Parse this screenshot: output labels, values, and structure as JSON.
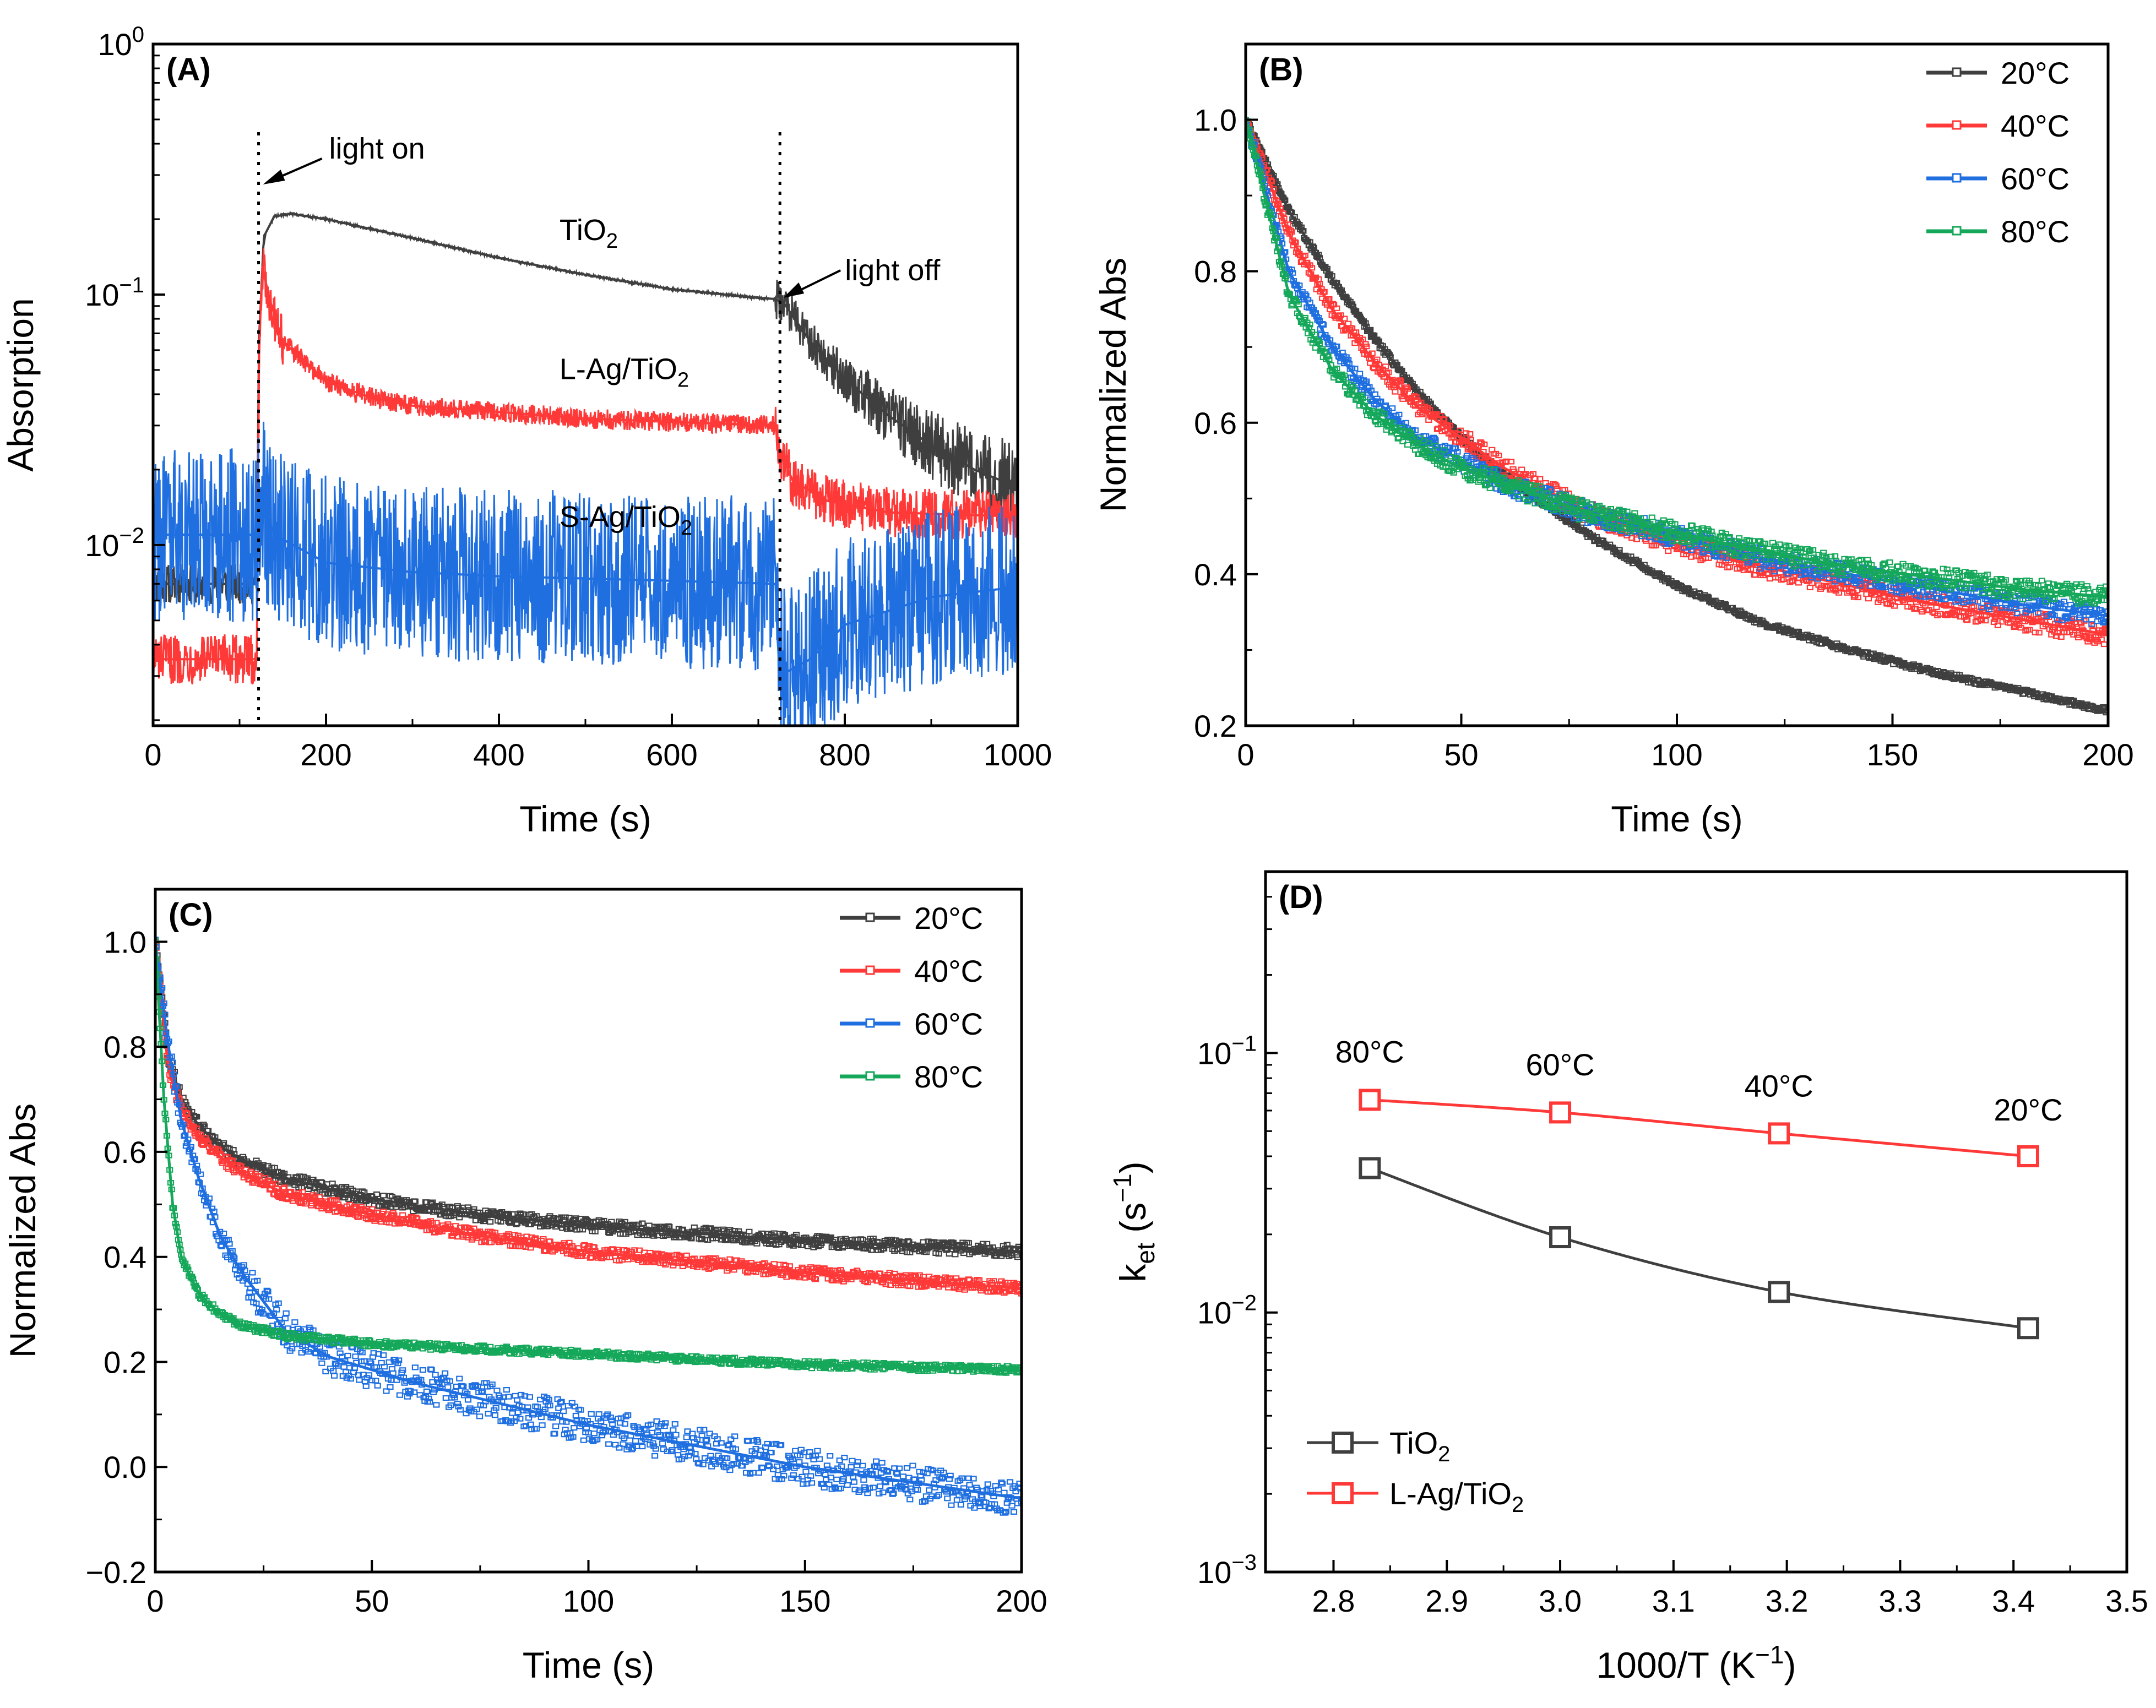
{
  "chart_data": [
    {
      "panel": "(A)",
      "type": "line",
      "xlabel": "Time (s)",
      "ylabel": "Absorption",
      "xlim": [
        0,
        1000
      ],
      "ylim_log": [
        0.0019,
        1
      ],
      "yscale": "log",
      "xticks": [
        0,
        200,
        400,
        600,
        800,
        1000
      ],
      "yticks": [
        {
          "value": 1,
          "base": "10",
          "exp": "0"
        },
        {
          "value": 0.1,
          "base": "10",
          "exp": "−1"
        },
        {
          "value": 0.01,
          "base": "10",
          "exp": "−2"
        }
      ],
      "series": [
        {
          "name": "TiO2",
          "color": "#3f3f3f",
          "noise": 0.08,
          "points": [
            [
              0,
              0.007
            ],
            [
              120,
              0.007
            ],
            [
              122,
              0.06
            ],
            [
              128,
              0.17
            ],
            [
              140,
              0.205
            ],
            [
              160,
              0.21
            ],
            [
              200,
              0.2
            ],
            [
              300,
              0.168
            ],
            [
              400,
              0.14
            ],
            [
              500,
              0.12
            ],
            [
              600,
              0.105
            ],
            [
              700,
              0.097
            ],
            [
              720,
              0.096
            ],
            [
              730,
              0.092
            ],
            [
              760,
              0.065
            ],
            [
              800,
              0.046
            ],
            [
              850,
              0.033
            ],
            [
              900,
              0.025
            ],
            [
              950,
              0.02
            ],
            [
              1000,
              0.017
            ]
          ]
        },
        {
          "name": "L-Ag/TiO2",
          "color": "#ff3838",
          "noise": 0.1,
          "points": [
            [
              0,
              0.0035
            ],
            [
              120,
              0.0035
            ],
            [
              122,
              0.05
            ],
            [
              126,
              0.13
            ],
            [
              135,
              0.095
            ],
            [
              150,
              0.065
            ],
            [
              200,
              0.045
            ],
            [
              250,
              0.039
            ],
            [
              300,
              0.036
            ],
            [
              400,
              0.034
            ],
            [
              500,
              0.032
            ],
            [
              600,
              0.031
            ],
            [
              720,
              0.03
            ],
            [
              724,
              0.024
            ],
            [
              740,
              0.018
            ],
            [
              780,
              0.015
            ],
            [
              850,
              0.0135
            ],
            [
              1000,
              0.013
            ]
          ]
        },
        {
          "name": "S-Ag/TiO2",
          "color": "#1f6fe0",
          "noise": 0.35,
          "points": [
            [
              0,
              0.011
            ],
            [
              120,
              0.011
            ],
            [
              122,
              0.016
            ],
            [
              140,
              0.011
            ],
            [
              200,
              0.0085
            ],
            [
              300,
              0.0078
            ],
            [
              400,
              0.0075
            ],
            [
              600,
              0.0072
            ],
            [
              720,
              0.007
            ],
            [
              724,
              0.003
            ],
            [
              760,
              0.0035
            ],
            [
              800,
              0.0048
            ],
            [
              900,
              0.0062
            ],
            [
              1000,
              0.0068
            ]
          ]
        }
      ],
      "annotations": [
        {
          "text": "light on",
          "x": 122
        },
        {
          "text": "light off",
          "x": 725
        }
      ],
      "curve_labels": [
        {
          "series": "TiO2",
          "base": "TiO",
          "sub": "2",
          "x": 470,
          "y": 0.165
        },
        {
          "series": "L-Ag/TiO2",
          "base": "L-Ag/TiO",
          "sub": "2",
          "x": 470,
          "y": 0.046
        },
        {
          "series": "S-Ag/TiO2",
          "base": "S-Ag/TiO",
          "sub": "2",
          "x": 470,
          "y": 0.0118
        }
      ]
    },
    {
      "panel": "(B)",
      "type": "scatter",
      "xlabel": "Time (s)",
      "ylabel": "Normalized Abs",
      "xlim": [
        0,
        200
      ],
      "ylim": [
        0.2,
        1.1
      ],
      "xticks": [
        0,
        50,
        100,
        150,
        200
      ],
      "yticks": [
        0.2,
        0.4,
        0.6,
        0.8,
        1.0
      ],
      "legend_position": "top-right",
      "series": [
        {
          "name": "20°C",
          "color": "#3f3f3f",
          "points": [
            [
              0,
              1.0
            ],
            [
              10,
              0.88
            ],
            [
              20,
              0.79
            ],
            [
              30,
              0.71
            ],
            [
              40,
              0.64
            ],
            [
              50,
              0.58
            ],
            [
              60,
              0.53
            ],
            [
              80,
              0.45
            ],
            [
              100,
              0.385
            ],
            [
              120,
              0.335
            ],
            [
              140,
              0.3
            ],
            [
              160,
              0.27
            ],
            [
              180,
              0.245
            ],
            [
              200,
              0.22
            ]
          ]
        },
        {
          "name": "40°C",
          "color": "#ff3838",
          "points": [
            [
              0,
              1.0
            ],
            [
              10,
              0.85
            ],
            [
              20,
              0.75
            ],
            [
              30,
              0.68
            ],
            [
              40,
              0.62
            ],
            [
              50,
              0.58
            ],
            [
              60,
              0.54
            ],
            [
              80,
              0.48
            ],
            [
              100,
              0.44
            ],
            [
              120,
              0.41
            ],
            [
              140,
              0.385
            ],
            [
              160,
              0.36
            ],
            [
              180,
              0.34
            ],
            [
              200,
              0.32
            ]
          ]
        },
        {
          "name": "60°C",
          "color": "#1f6fe0",
          "points": [
            [
              0,
              1.0
            ],
            [
              10,
              0.8
            ],
            [
              20,
              0.7
            ],
            [
              30,
              0.63
            ],
            [
              40,
              0.58
            ],
            [
              50,
              0.55
            ],
            [
              60,
              0.52
            ],
            [
              80,
              0.48
            ],
            [
              100,
              0.45
            ],
            [
              120,
              0.42
            ],
            [
              140,
              0.4
            ],
            [
              160,
              0.38
            ],
            [
              180,
              0.36
            ],
            [
              200,
              0.345
            ]
          ]
        },
        {
          "name": "80°C",
          "color": "#16a85a",
          "points": [
            [
              0,
              1.0
            ],
            [
              10,
              0.77
            ],
            [
              20,
              0.67
            ],
            [
              30,
              0.61
            ],
            [
              40,
              0.57
            ],
            [
              50,
              0.54
            ],
            [
              60,
              0.52
            ],
            [
              80,
              0.48
            ],
            [
              100,
              0.455
            ],
            [
              120,
              0.43
            ],
            [
              140,
              0.41
            ],
            [
              160,
              0.395
            ],
            [
              180,
              0.38
            ],
            [
              200,
              0.37
            ]
          ]
        }
      ]
    },
    {
      "panel": "(C)",
      "type": "scatter",
      "xlabel": "Time (s)",
      "ylabel": "Normalized Abs",
      "xlim": [
        0,
        200
      ],
      "ylim": [
        -0.2,
        1.1
      ],
      "xticks": [
        0,
        50,
        100,
        150,
        200
      ],
      "yticks": [
        -0.2,
        0.0,
        0.2,
        0.4,
        0.6,
        0.8,
        1.0
      ],
      "ytick_labels": [
        "−0.2",
        "0.0",
        "0.2",
        "0.4",
        "0.6",
        "0.8",
        "1.0"
      ],
      "legend_position": "top-right",
      "series": [
        {
          "name": "20°C",
          "color": "#3f3f3f",
          "points": [
            [
              0,
              1.0
            ],
            [
              3,
              0.78
            ],
            [
              6,
              0.7
            ],
            [
              10,
              0.65
            ],
            [
              15,
              0.61
            ],
            [
              20,
              0.585
            ],
            [
              30,
              0.55
            ],
            [
              50,
              0.51
            ],
            [
              75,
              0.48
            ],
            [
              100,
              0.46
            ],
            [
              125,
              0.445
            ],
            [
              150,
              0.43
            ],
            [
              175,
              0.42
            ],
            [
              200,
              0.41
            ]
          ]
        },
        {
          "name": "40°C",
          "color": "#ff3838",
          "points": [
            [
              0,
              1.0
            ],
            [
              3,
              0.76
            ],
            [
              6,
              0.68
            ],
            [
              10,
              0.63
            ],
            [
              15,
              0.59
            ],
            [
              20,
              0.56
            ],
            [
              30,
              0.52
            ],
            [
              50,
              0.48
            ],
            [
              75,
              0.44
            ],
            [
              100,
              0.41
            ],
            [
              125,
              0.39
            ],
            [
              150,
              0.37
            ],
            [
              175,
              0.355
            ],
            [
              200,
              0.34
            ]
          ]
        },
        {
          "name": "60°C",
          "color": "#1f6fe0",
          "points": [
            [
              0,
              1.0
            ],
            [
              3,
              0.8
            ],
            [
              6,
              0.66
            ],
            [
              10,
              0.55
            ],
            [
              15,
              0.44
            ],
            [
              20,
              0.37
            ],
            [
              30,
              0.26
            ],
            [
              40,
              0.21
            ],
            [
              60,
              0.16
            ],
            [
              80,
              0.12
            ],
            [
              100,
              0.08
            ],
            [
              125,
              0.04
            ],
            [
              150,
              0.0
            ],
            [
              175,
              -0.03
            ],
            [
              200,
              -0.06
            ]
          ]
        },
        {
          "name": "80°C",
          "color": "#16a85a",
          "points": [
            [
              0,
              1.0
            ],
            [
              2,
              0.7
            ],
            [
              4,
              0.5
            ],
            [
              6,
              0.4
            ],
            [
              10,
              0.33
            ],
            [
              15,
              0.29
            ],
            [
              20,
              0.27
            ],
            [
              30,
              0.25
            ],
            [
              50,
              0.235
            ],
            [
              75,
              0.225
            ],
            [
              100,
              0.215
            ],
            [
              125,
              0.205
            ],
            [
              150,
              0.195
            ],
            [
              175,
              0.19
            ],
            [
              200,
              0.185
            ]
          ]
        }
      ]
    },
    {
      "panel": "(D)",
      "type": "line",
      "xlabel": "1000/T (K",
      "xlabel_exp": "−1",
      "xlabel_tail": ")",
      "ylabel": "k",
      "ylabel_sub": "et",
      "ylabel_mid": " (s",
      "ylabel_exp": "−1",
      "ylabel_tail": ")",
      "xlim": [
        2.74,
        3.5
      ],
      "ylim_log": [
        0.001,
        0.5
      ],
      "yscale": "log",
      "xticks": [
        2.8,
        2.9,
        3.0,
        3.1,
        3.2,
        3.3,
        3.4,
        3.5
      ],
      "xtick_labels": [
        "2.8",
        "2.9",
        "3.0",
        "3.1",
        "3.2",
        "3.3",
        "3.4",
        "3.5"
      ],
      "yticks": [
        {
          "value": 0.1,
          "base": "10",
          "exp": "−1"
        },
        {
          "value": 0.01,
          "base": "10",
          "exp": "−2"
        },
        {
          "value": 0.001,
          "base": "10",
          "exp": "−3"
        }
      ],
      "legend_position": "bottom-left",
      "series": [
        {
          "name": "TiO2",
          "base": "TiO",
          "sub": "2",
          "color": "#3f3f3f",
          "points": [
            [
              2.832,
              0.036
            ],
            [
              3.0,
              0.0195
            ],
            [
              3.193,
              0.012
            ],
            [
              3.413,
              0.0087
            ]
          ]
        },
        {
          "name": "L-Ag/TiO2",
          "base": "L-Ag/TiO",
          "sub": "2",
          "color": "#ff3838",
          "points": [
            [
              2.832,
              0.066
            ],
            [
              3.0,
              0.059
            ],
            [
              3.193,
              0.049
            ],
            [
              3.413,
              0.04
            ]
          ]
        }
      ],
      "point_labels": [
        {
          "text": "80°C",
          "x": 2.832,
          "y": 0.092
        },
        {
          "text": "60°C",
          "x": 3.0,
          "y": 0.082
        },
        {
          "text": "40°C",
          "x": 3.193,
          "y": 0.068
        },
        {
          "text": "20°C",
          "x": 3.413,
          "y": 0.055
        }
      ]
    }
  ]
}
